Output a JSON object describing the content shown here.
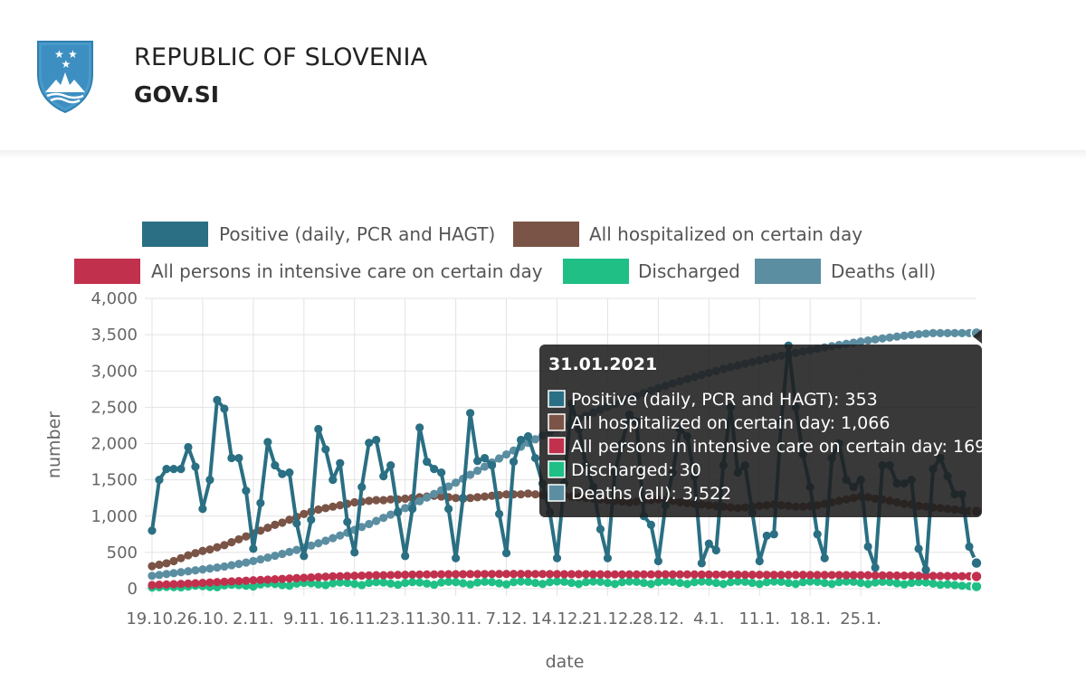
{
  "header": {
    "title": "REPUBLIC OF SLOVENIA",
    "subtitle": "GOV.SI",
    "crest_icon": "slovenia-coat-of-arms-icon"
  },
  "colors": {
    "positive": "#2a6f83",
    "hospitalized": "#7a5446",
    "icu": "#c1314e",
    "discharged": "#1fbf86",
    "deaths": "#5c8ea2"
  },
  "chart_data": {
    "type": "line",
    "xlabel": "date",
    "ylabel": "number",
    "ylim": [
      0,
      4000
    ],
    "yticks": [
      "0",
      "500",
      "1,000",
      "1,500",
      "2,000",
      "2,500",
      "3,000",
      "3,500",
      "4,000"
    ],
    "xticks": [
      "19.10.",
      "26.10.",
      "2.11.",
      "9.11.",
      "16.11.",
      "23.11.",
      "30.11.",
      "7.12.",
      "14.12.",
      "21.12.",
      "28.12.",
      "4.1.",
      "11.1.",
      "18.1.",
      "25.1."
    ],
    "grid": true,
    "legend_position": "top",
    "x_start": "2020-10-19",
    "x_end": "2021-01-31",
    "series": [
      {
        "name": "Positive (daily, PCR and HAGT)",
        "values": [
          800,
          1500,
          1650,
          1650,
          1650,
          1950,
          1680,
          1100,
          1500,
          2600,
          2480,
          1800,
          1800,
          1350,
          550,
          1180,
          2020,
          1700,
          1580,
          1600,
          900,
          450,
          950,
          2200,
          1920,
          1500,
          1730,
          920,
          500,
          1400,
          2010,
          2050,
          1550,
          1700,
          1050,
          450,
          1100,
          2220,
          1750,
          1650,
          1600,
          1100,
          420,
          1250,
          2420,
          1760,
          1800,
          1700,
          1030,
          490,
          1750,
          2050,
          2100,
          1800,
          1450,
          1050,
          420,
          1450,
          2550,
          2200,
          1700,
          1400,
          820,
          420,
          1600,
          2000,
          2400,
          2300,
          1000,
          880,
          380,
          1150,
          1600,
          2200,
          2100,
          1550,
          350,
          620,
          530,
          1700,
          2500,
          1600,
          1700,
          1050,
          380,
          730,
          750,
          2300,
          3350,
          2500,
          1850,
          1400,
          750,
          420,
          1800,
          2000,
          1500,
          1400,
          1500,
          580,
          290,
          1700,
          1700,
          1450,
          1450,
          1500,
          550,
          260,
          1650,
          1800,
          1550,
          1300,
          1300,
          580,
          353
        ]
      },
      {
        "name": "All hospitalized on certain day",
        "values": [
          310,
          330,
          350,
          380,
          420,
          460,
          490,
          520,
          540,
          570,
          600,
          640,
          680,
          720,
          760,
          800,
          840,
          880,
          910,
          950,
          990,
          1030,
          1060,
          1090,
          1110,
          1130,
          1150,
          1170,
          1190,
          1200,
          1210,
          1220,
          1220,
          1230,
          1230,
          1240,
          1250,
          1260,
          1270,
          1280,
          1270,
          1260,
          1250,
          1240,
          1250,
          1260,
          1270,
          1280,
          1290,
          1300,
          1300,
          1300,
          1310,
          1300,
          1290,
          1290,
          1280,
          1280,
          1270,
          1260,
          1250,
          1240,
          1230,
          1220,
          1210,
          1200,
          1190,
          1200,
          1210,
          1220,
          1230,
          1220,
          1210,
          1190,
          1180,
          1170,
          1160,
          1150,
          1140,
          1130,
          1120,
          1110,
          1120,
          1130,
          1140,
          1150,
          1160,
          1150,
          1140,
          1130,
          1130,
          1140,
          1150,
          1170,
          1190,
          1210,
          1230,
          1250,
          1270,
          1260,
          1240,
          1230,
          1210,
          1190,
          1170,
          1160,
          1140,
          1130,
          1120,
          1110,
          1100,
          1090,
          1080,
          1070,
          1066
        ]
      },
      {
        "name": "All persons in intensive care on certain day",
        "values": [
          50,
          55,
          58,
          62,
          66,
          70,
          75,
          80,
          85,
          90,
          95,
          100,
          105,
          110,
          115,
          120,
          125,
          130,
          135,
          140,
          145,
          150,
          155,
          160,
          165,
          170,
          172,
          175,
          178,
          180,
          182,
          185,
          186,
          188,
          190,
          192,
          194,
          195,
          196,
          197,
          198,
          199,
          200,
          200,
          201,
          201,
          202,
          202,
          203,
          203,
          203,
          203,
          203,
          202,
          202,
          201,
          201,
          200,
          200,
          199,
          199,
          198,
          198,
          197,
          197,
          196,
          196,
          196,
          197,
          197,
          198,
          198,
          197,
          197,
          196,
          196,
          195,
          195,
          194,
          194,
          193,
          193,
          192,
          192,
          192,
          191,
          191,
          190,
          190,
          190,
          190,
          189,
          189,
          189,
          188,
          188,
          187,
          187,
          186,
          185,
          184,
          183,
          182,
          181,
          180,
          179,
          178,
          177,
          176,
          175,
          174,
          173,
          172,
          171,
          169
        ]
      },
      {
        "name": "Discharged",
        "values": [
          15,
          20,
          25,
          22,
          18,
          30,
          40,
          35,
          25,
          20,
          45,
          55,
          50,
          40,
          30,
          60,
          70,
          65,
          50,
          40,
          70,
          80,
          75,
          60,
          50,
          75,
          85,
          80,
          65,
          50,
          80,
          90,
          85,
          70,
          55,
          80,
          90,
          85,
          70,
          55,
          85,
          95,
          90,
          75,
          60,
          85,
          95,
          90,
          75,
          60,
          90,
          100,
          95,
          80,
          65,
          90,
          100,
          95,
          80,
          65,
          90,
          100,
          95,
          80,
          65,
          90,
          100,
          95,
          80,
          65,
          90,
          100,
          95,
          80,
          65,
          90,
          100,
          95,
          80,
          65,
          90,
          100,
          95,
          80,
          65,
          90,
          100,
          95,
          80,
          65,
          90,
          100,
          95,
          80,
          65,
          90,
          100,
          95,
          80,
          65,
          85,
          95,
          90,
          75,
          60,
          80,
          90,
          85,
          70,
          55,
          60,
          50,
          40,
          35,
          30
        ]
      },
      {
        "name": "Deaths (all)",
        "values": [
          177,
          189,
          202,
          214,
          227,
          240,
          252,
          265,
          277,
          291,
          306,
          323,
          341,
          360,
          381,
          404,
          428,
          453,
          479,
          506,
          534,
          563,
          594,
          626,
          660,
          696,
          733,
          771,
          810,
          850,
          891,
          933,
          976,
          1020,
          1065,
          1111,
          1158,
          1206,
          1255,
          1305,
          1356,
          1408,
          1461,
          1515,
          1570,
          1626,
          1682,
          1738,
          1794,
          1850,
          1904,
          1957,
          2009,
          2060,
          2110,
          2158,
          2205,
          2251,
          2296,
          2340,
          2383,
          2425,
          2466,
          2506,
          2545,
          2583,
          2621,
          2658,
          2694,
          2729,
          2763,
          2796,
          2828,
          2859,
          2889,
          2918,
          2947,
          2975,
          3002,
          3028,
          3053,
          3077,
          3101,
          3124,
          3146,
          3168,
          3189,
          3210,
          3230,
          3250,
          3269,
          3288,
          3306,
          3324,
          3341,
          3358,
          3374,
          3390,
          3405,
          3420,
          3434,
          3448,
          3461,
          3474,
          3486,
          3497,
          3507,
          3515,
          3522,
          3522,
          3522,
          3522,
          3522,
          3522,
          3522
        ]
      }
    ],
    "tooltip": {
      "date": "31.01.2021",
      "lines": [
        "Positive (daily, PCR and HAGT): 353",
        "All hospitalized on certain day: 1,066",
        "All persons in intensive care on certain day: 169",
        "Discharged: 30",
        "Deaths (all): 3,522"
      ]
    }
  }
}
